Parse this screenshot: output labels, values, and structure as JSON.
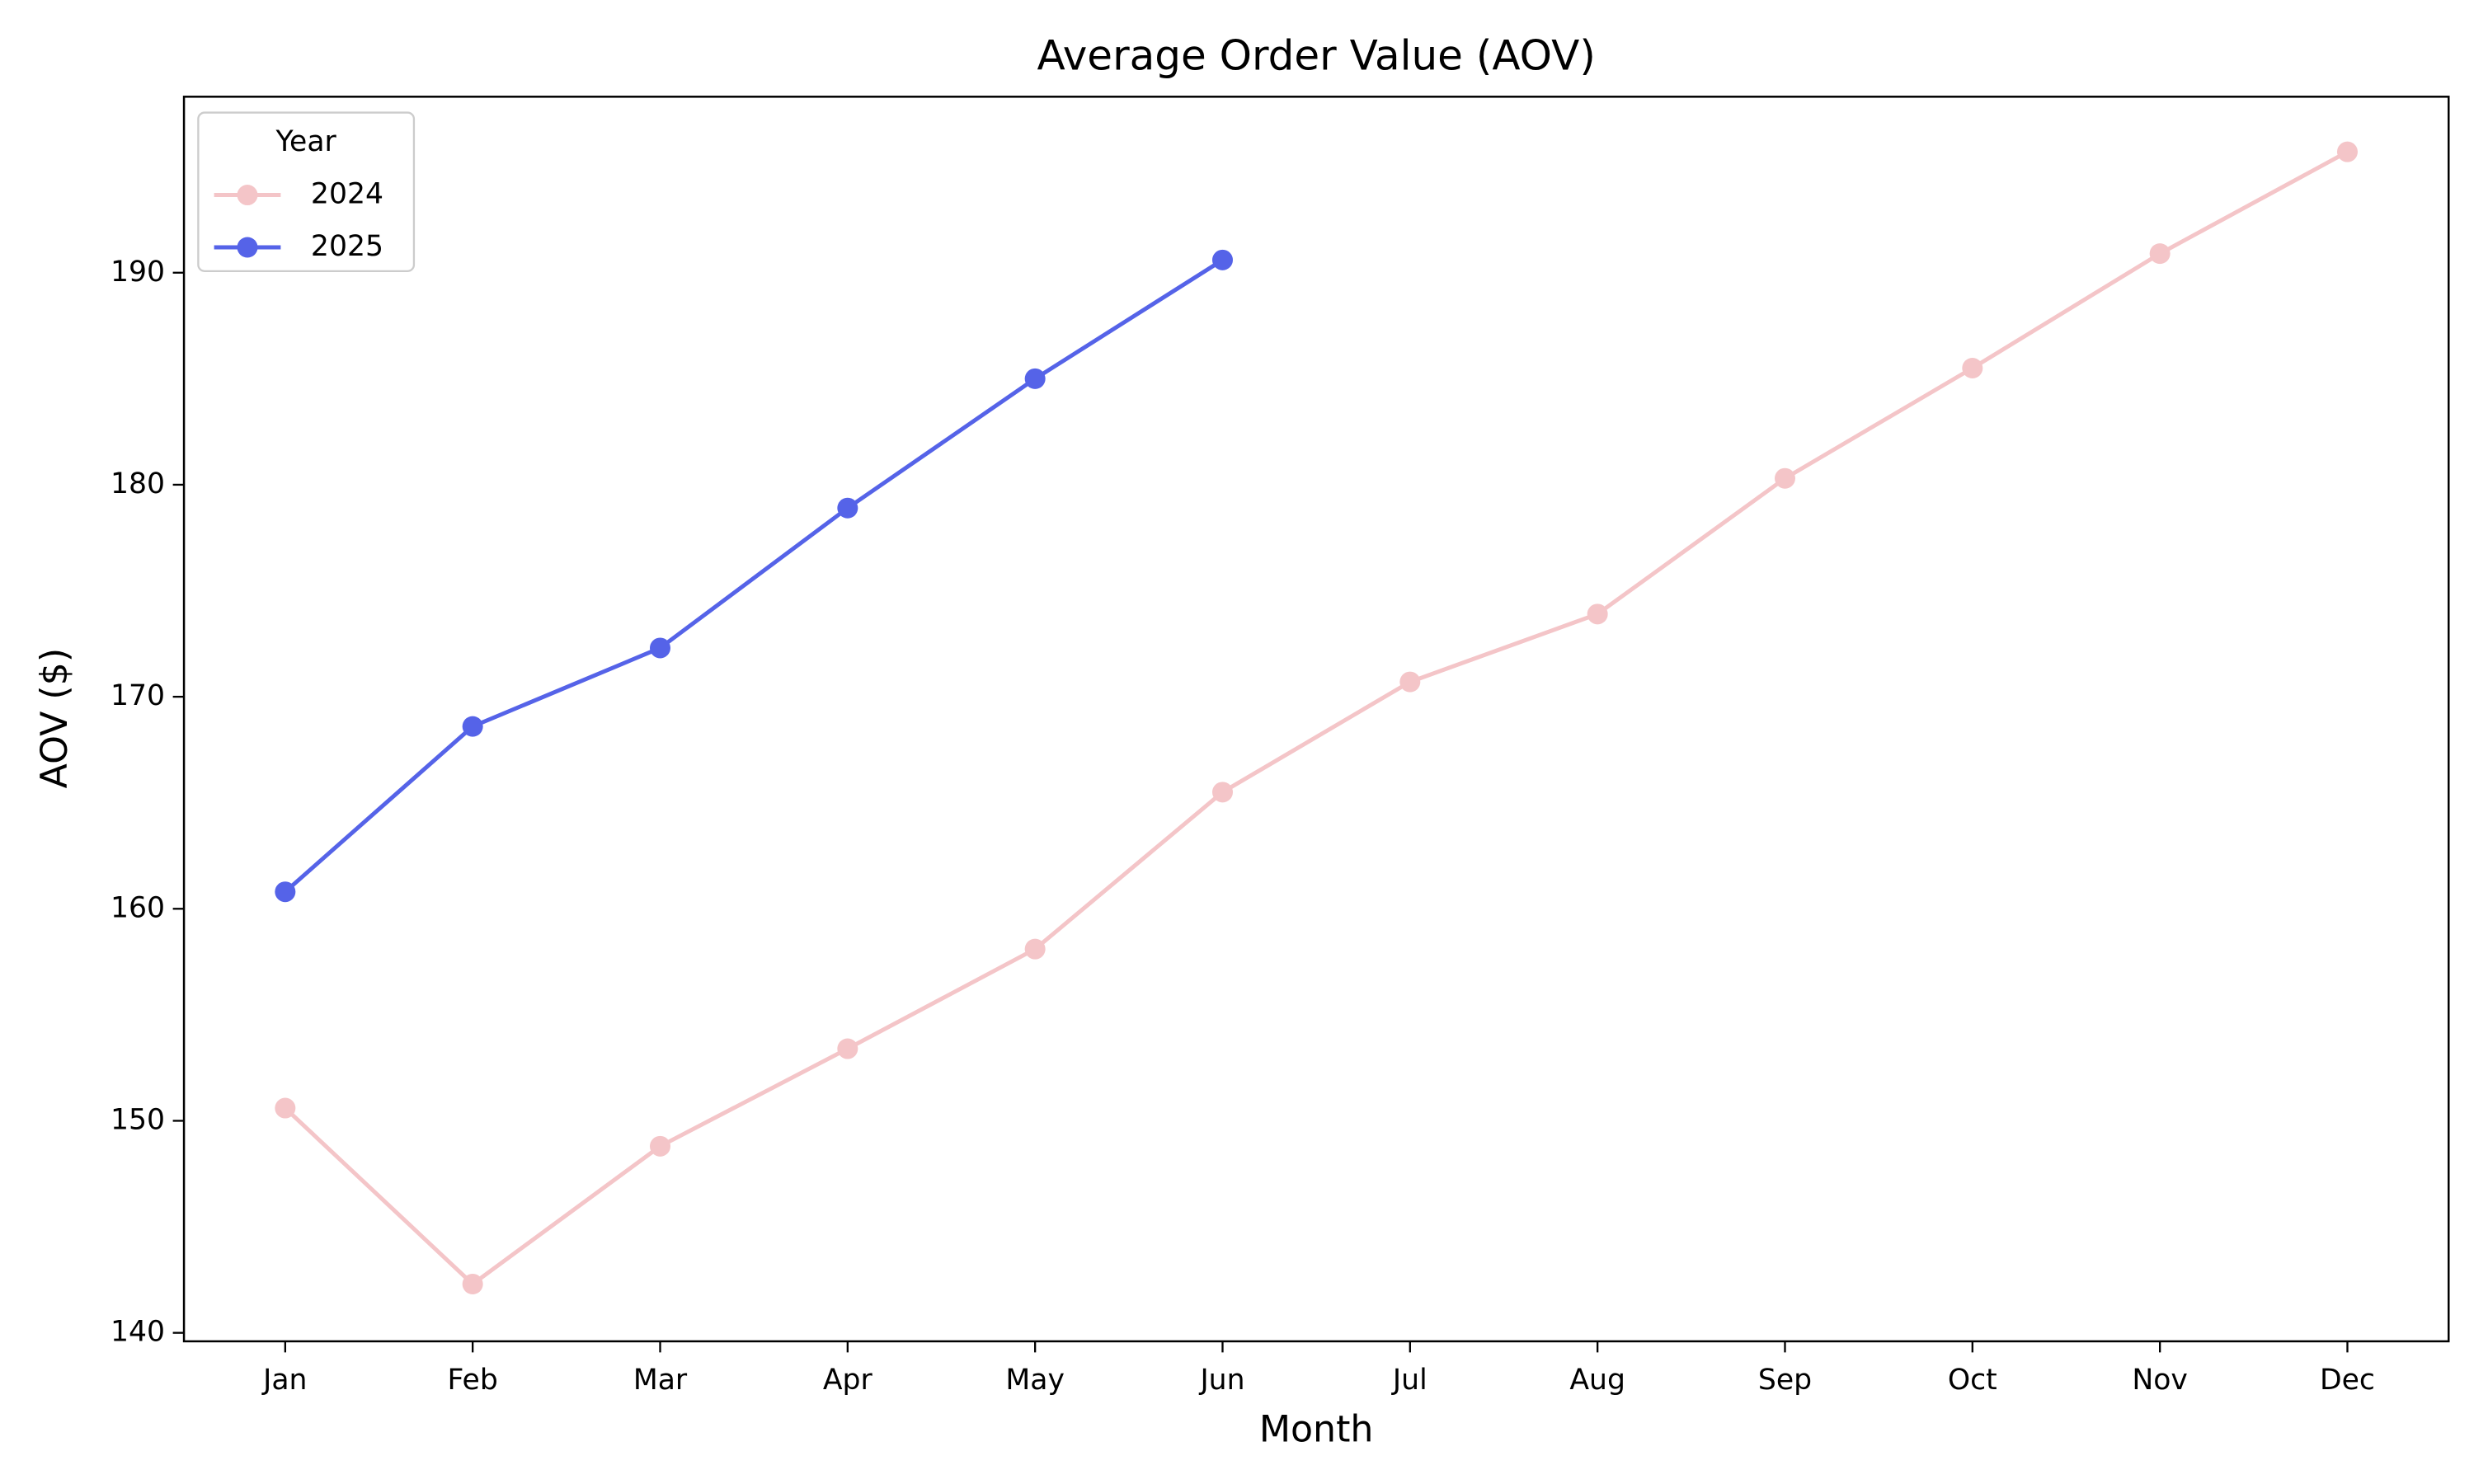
{
  "chart_data": {
    "type": "line",
    "title": "Average Order Value (AOV)",
    "x_label": "Month",
    "y_label": "AOV ($)",
    "categories": [
      "Jan",
      "Feb",
      "Mar",
      "Apr",
      "May",
      "Jun",
      "Jul",
      "Aug",
      "Sep",
      "Oct",
      "Nov",
      "Dec"
    ],
    "series": [
      {
        "name": "2024",
        "color": "#f4c5c8",
        "values": [
          150.6,
          142.3,
          148.8,
          153.4,
          158.1,
          165.5,
          170.7,
          173.9,
          180.3,
          185.5,
          190.9,
          195.7
        ]
      },
      {
        "name": "2025",
        "color": "#5563e8",
        "values": [
          160.8,
          168.6,
          172.3,
          178.9,
          185.0,
          190.6,
          null,
          null,
          null,
          null,
          null,
          null
        ]
      }
    ],
    "ylim": [
      139.6,
      198.3
    ],
    "yticks": [
      140,
      150,
      160,
      170,
      180,
      190
    ],
    "legend_title": "Year",
    "legend_position": "upper left",
    "grid": false
  }
}
